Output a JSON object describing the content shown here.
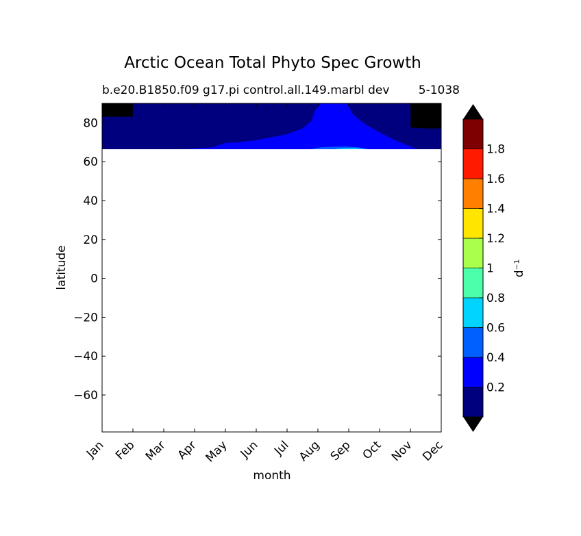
{
  "figure": {
    "title": "Arctic Ocean Total Phyto Spec Growth",
    "subtitle_left": "b.e20.B1850.f09 g17.pi control.all.149.marbl dev",
    "subtitle_right": "5-1038"
  },
  "chart_data": {
    "type": "heatmap",
    "xlabel": "month",
    "ylabel": "latitude",
    "x": [
      "Jan",
      "Feb",
      "Mar",
      "Apr",
      "May",
      "Jun",
      "Jul",
      "Aug",
      "Sep",
      "Oct",
      "Nov",
      "Dec"
    ],
    "xlim": [
      0,
      11
    ],
    "ylim": [
      -79,
      90
    ],
    "yticks": [
      "80",
      "60",
      "40",
      "20",
      "0",
      "−20",
      "−40",
      "−60"
    ],
    "ytick_values": [
      80,
      60,
      40,
      20,
      0,
      -20,
      -40,
      -60
    ],
    "data_lat_range": [
      66.5,
      90
    ],
    "colorbar": {
      "label": "d⁻¹",
      "levels": [
        0,
        0.2,
        0.4,
        0.6,
        0.8,
        1.0,
        1.2,
        1.4,
        1.6,
        1.8,
        2.0
      ],
      "tick_labels": [
        "0.2",
        "0.4",
        "0.6",
        "0.8",
        "1",
        "1.2",
        "1.4",
        "1.6",
        "1.8"
      ],
      "tick_values": [
        0.2,
        0.4,
        0.6,
        0.8,
        1.0,
        1.2,
        1.4,
        1.6,
        1.8
      ],
      "colors": [
        "#00007f",
        "#0000ff",
        "#0060ff",
        "#00d4ff",
        "#4cffaa",
        "#aaff4c",
        "#ffe500",
        "#ff7f00",
        "#ff1a00",
        "#7f0000"
      ],
      "under_color": "#000000",
      "over_color": "#000000",
      "extend": "both"
    },
    "regions": [
      {
        "level": "below 0",
        "color": "#000000",
        "polygon": [
          [
            0,
            83
          ],
          [
            1,
            83
          ],
          [
            1,
            90
          ],
          [
            0,
            90
          ]
        ]
      },
      {
        "level": "below 0",
        "color": "#000000",
        "polygon": [
          [
            10,
            90
          ],
          [
            10,
            77.5
          ],
          [
            10.5,
            77
          ],
          [
            11,
            77
          ],
          [
            11,
            90
          ]
        ]
      },
      {
        "level": "0-0.2",
        "color": "#00007f",
        "polygon": [
          [
            0,
            66.5
          ],
          [
            11,
            66.5
          ],
          [
            11,
            77
          ],
          [
            10.5,
            77
          ],
          [
            10,
            77.5
          ],
          [
            10,
            90
          ],
          [
            1,
            90
          ],
          [
            1,
            83
          ],
          [
            0,
            83
          ]
        ]
      },
      {
        "level": "0.2-0.4",
        "color": "#0000ff",
        "polygon": [
          [
            2.8,
            66.5
          ],
          [
            3.3,
            67
          ],
          [
            3.6,
            67.3
          ],
          [
            3.8,
            68.5
          ],
          [
            4,
            69.5
          ],
          [
            4.5,
            70
          ],
          [
            5,
            71
          ],
          [
            5.5,
            72.5
          ],
          [
            6,
            74
          ],
          [
            6.5,
            77
          ],
          [
            6.8,
            81
          ],
          [
            6.9,
            86
          ],
          [
            7,
            88
          ],
          [
            7.1,
            90
          ],
          [
            7.95,
            90
          ],
          [
            8.1,
            85
          ],
          [
            8.3,
            82
          ],
          [
            8.6,
            78.5
          ],
          [
            9,
            75
          ],
          [
            9.5,
            71
          ],
          [
            9.8,
            69
          ],
          [
            10,
            67.8
          ],
          [
            10.2,
            66.5
          ]
        ]
      },
      {
        "level": "0.4-0.6",
        "color": "#0060ff",
        "polygon": [
          [
            6.8,
            66.5
          ],
          [
            7.1,
            67.3
          ],
          [
            7.5,
            67.6
          ],
          [
            7.9,
            67.7
          ],
          [
            8.3,
            67.3
          ],
          [
            8.6,
            66.5
          ]
        ]
      },
      {
        "level": "0.6-0.8",
        "color": "#00d4ff",
        "polygon": [
          [
            7.6,
            66.5
          ],
          [
            7.9,
            66.9
          ],
          [
            8.2,
            66.9
          ],
          [
            8.5,
            66.5
          ]
        ]
      }
    ]
  }
}
